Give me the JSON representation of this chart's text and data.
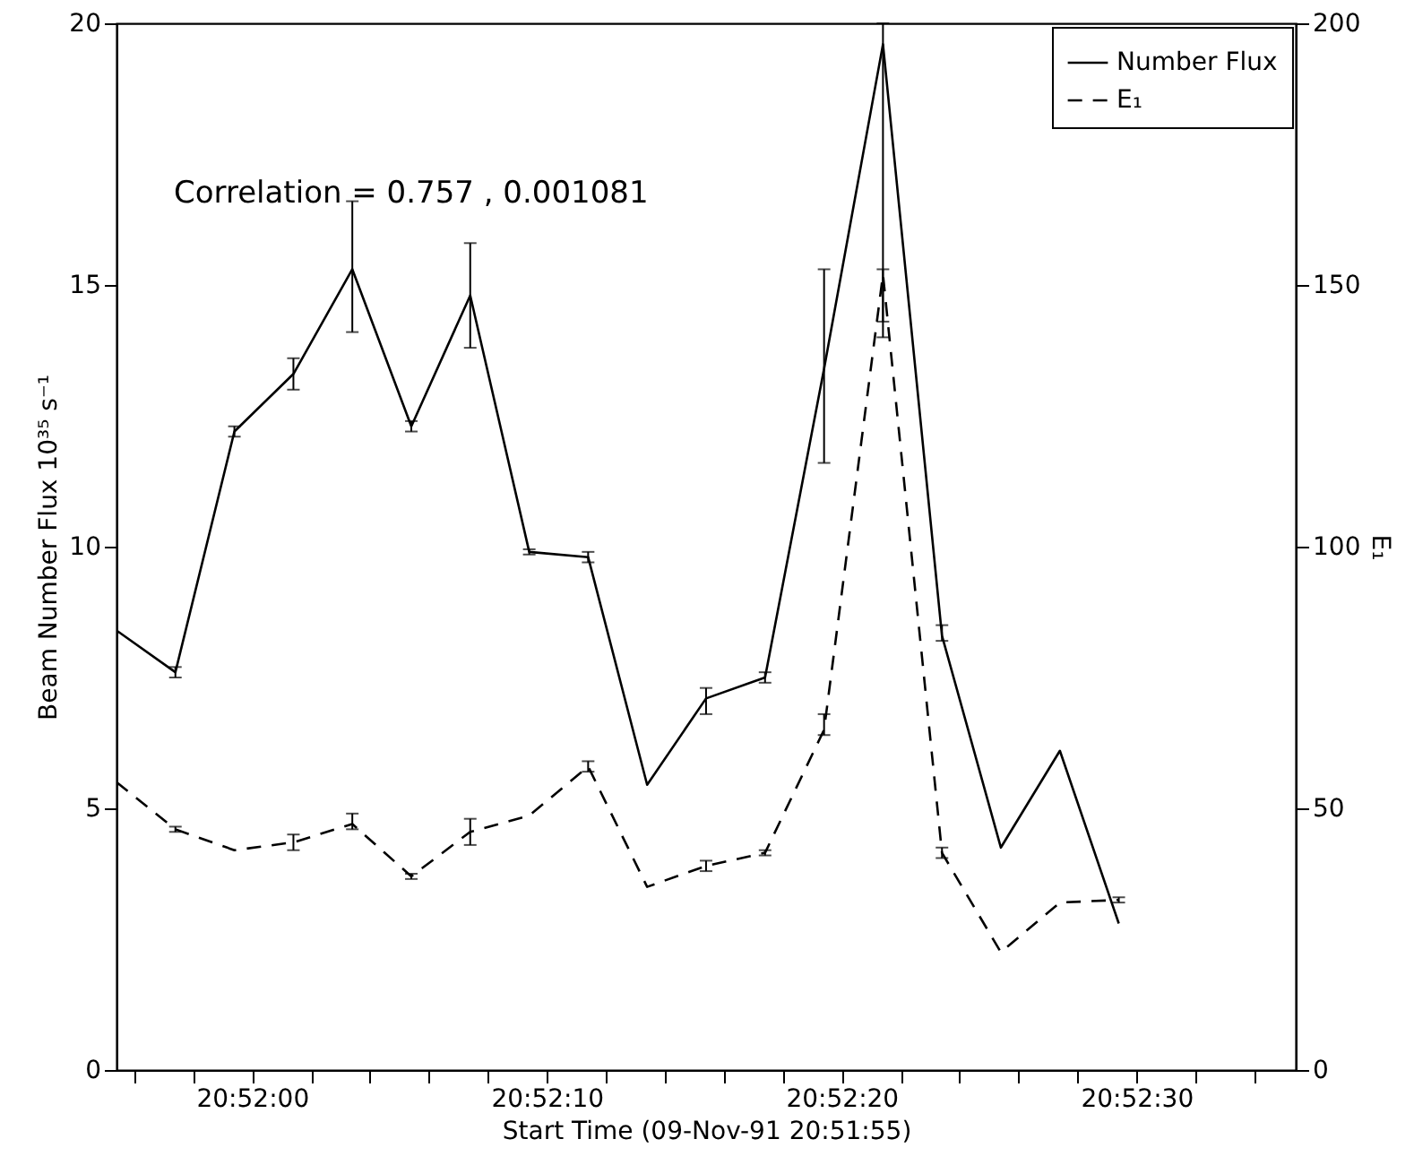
{
  "chart_data": {
    "type": "line",
    "xlabel": "Start Time (09-Nov-91 20:51:55)",
    "ylabel": "Beam Number Flux 10³⁵ s⁻¹",
    "y2label": "E₁",
    "annotations": [
      "Correlation = 0.757 , 0.001081"
    ],
    "x": [
      20.865389,
      20.865944,
      20.8665,
      20.867056,
      20.867611,
      20.868167,
      20.868722,
      20.869278,
      20.869833,
      20.870389,
      20.870944,
      20.8715,
      20.872056,
      20.872611,
      20.873167,
      20.873722,
      20.874278,
      20.874833
    ],
    "xlim": [
      20.865389,
      20.8765
    ],
    "xticks": [
      {
        "value": 20.865556,
        "label": null
      },
      {
        "value": 20.866111,
        "label": null
      },
      {
        "value": 20.866667,
        "label": "20:52:00"
      },
      {
        "value": 20.867222,
        "label": null
      },
      {
        "value": 20.867778,
        "label": null
      },
      {
        "value": 20.868333,
        "label": null
      },
      {
        "value": 20.868889,
        "label": null
      },
      {
        "value": 20.869444,
        "label": "20:52:10"
      },
      {
        "value": 20.87,
        "label": null
      },
      {
        "value": 20.870556,
        "label": null
      },
      {
        "value": 20.871111,
        "label": null
      },
      {
        "value": 20.871667,
        "label": null
      },
      {
        "value": 20.872222,
        "label": "20:52:20"
      },
      {
        "value": 20.872778,
        "label": null
      },
      {
        "value": 20.873333,
        "label": null
      },
      {
        "value": 20.873889,
        "label": null
      },
      {
        "value": 20.874444,
        "label": null
      },
      {
        "value": 20.875,
        "label": "20:52:30"
      },
      {
        "value": 20.875556,
        "label": null
      },
      {
        "value": 20.876111,
        "label": null
      }
    ],
    "ylim": [
      0,
      20
    ],
    "yticks": [
      0,
      5,
      10,
      15,
      20
    ],
    "y2lim": [
      0,
      200
    ],
    "y2ticks": [
      0,
      50,
      100,
      150,
      200
    ],
    "series": [
      {
        "name": "Number Flux",
        "color": "#000000",
        "line_style": "solid",
        "values": [
          8.4,
          7.6,
          12.2,
          13.3,
          15.3,
          12.3,
          14.8,
          9.9,
          9.8,
          5.45,
          7.1,
          7.5,
          13.4,
          19.6,
          8.3,
          4.25,
          6.1,
          2.8
        ],
        "errors": [
          null,
          0.1,
          0.1,
          0.3,
          [
            14.1,
            16.6
          ],
          0.1,
          [
            13.8,
            15.8
          ],
          0.05,
          0.1,
          null,
          [
            6.8,
            7.3
          ],
          0.1,
          [
            11.6,
            15.3
          ],
          [
            14.0,
            20
          ],
          [
            8.2,
            8.5
          ],
          null,
          null,
          null
        ]
      },
      {
        "name": "E₁",
        "color": "#000000",
        "line_style": "dashed",
        "axis": "y2",
        "values": [
          55,
          46,
          42,
          43.5,
          47,
          37,
          45.5,
          48.6,
          58,
          35,
          39,
          41.5,
          65,
          152,
          41.5,
          22.5,
          32,
          32.5
        ],
        "errors": [
          null,
          0.5,
          null,
          1.5,
          [
            46,
            49
          ],
          0.5,
          [
            43,
            48
          ],
          null,
          1,
          null,
          1,
          0.5,
          [
            64,
            68
          ],
          [
            143,
            153
          ],
          1,
          null,
          null,
          0.5
        ]
      }
    ],
    "legend": "top right"
  }
}
